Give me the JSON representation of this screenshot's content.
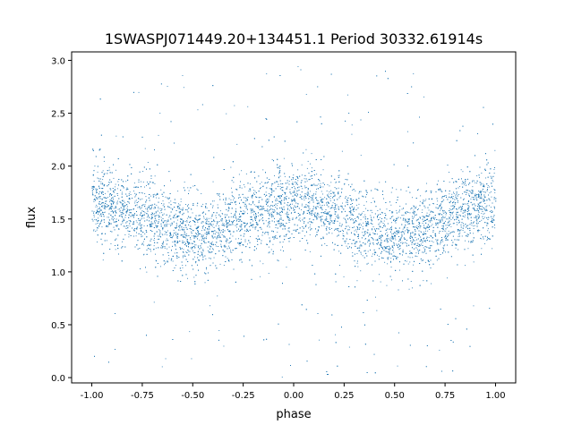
{
  "chart_data": {
    "type": "scatter",
    "title": "1SWASPJ071449.20+134451.1 Period 30332.61914s",
    "xlabel": "phase",
    "ylabel": "flux",
    "xlim": [
      -1.1,
      1.1
    ],
    "ylim": [
      -0.05,
      3.08
    ],
    "xticks": [
      "-1.00",
      "-0.75",
      "-0.50",
      "-0.25",
      "0.00",
      "0.25",
      "0.50",
      "0.75",
      "1.00"
    ],
    "xtick_values": [
      -1.0,
      -0.75,
      -0.5,
      -0.25,
      0.0,
      0.25,
      0.5,
      0.75,
      1.0
    ],
    "yticks": [
      "0.0",
      "0.5",
      "1.0",
      "1.5",
      "2.0",
      "2.5",
      "3.0"
    ],
    "ytick_values": [
      0.0,
      0.5,
      1.0,
      1.5,
      2.0,
      2.5,
      3.0
    ],
    "grid": false,
    "marker_color": "#1f77b4",
    "binned_trend": {
      "x": [
        -1.0,
        -0.875,
        -0.75,
        -0.625,
        -0.5,
        -0.375,
        -0.25,
        -0.125,
        0.0,
        0.125,
        0.25,
        0.375,
        0.5,
        0.625,
        0.75,
        0.875,
        1.0
      ],
      "y": [
        1.65,
        1.62,
        1.55,
        1.42,
        1.32,
        1.38,
        1.5,
        1.6,
        1.65,
        1.62,
        1.52,
        1.4,
        1.32,
        1.38,
        1.5,
        1.6,
        1.65
      ],
      "scatter_std": 0.18,
      "outlier_range": [
        0.0,
        2.95
      ]
    }
  }
}
